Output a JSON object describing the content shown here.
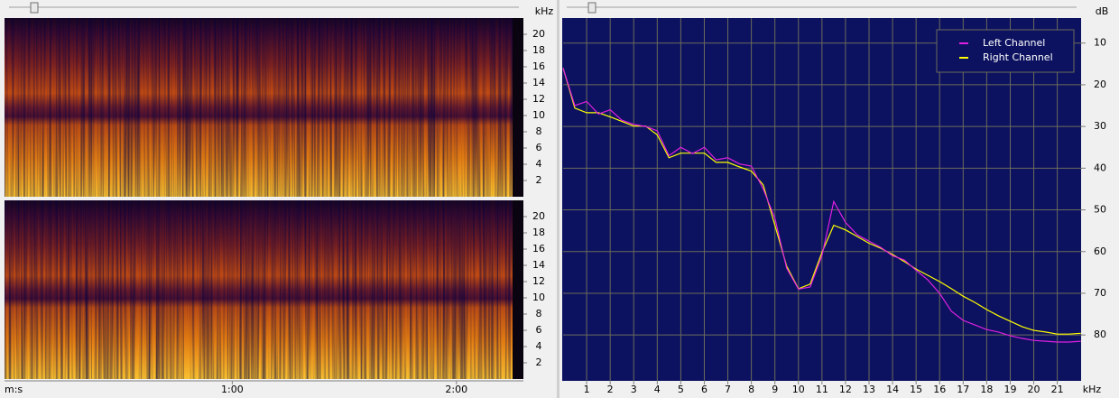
{
  "chart_data": [
    {
      "type": "spectrogram",
      "y_label": "kHz",
      "ylim": [
        0,
        22
      ],
      "yticks": [
        2,
        4,
        6,
        8,
        10,
        12,
        14,
        16,
        18,
        20
      ]
    },
    {
      "type": "spectrogram",
      "x_label": "m:s",
      "ylim": [
        0,
        22
      ],
      "yticks": [
        2,
        4,
        6,
        8,
        10,
        12,
        14,
        16,
        18,
        20
      ],
      "xlim": [
        0,
        136
      ],
      "xticks": [
        {
          "value": 60,
          "label": "1:00"
        },
        {
          "value": 120,
          "label": "2:00"
        }
      ]
    },
    {
      "type": "line",
      "x_label": "kHz",
      "y_label": "dB",
      "y_inverted": true,
      "grid": true,
      "legend": "top-right",
      "xlim": [
        0,
        22.05
      ],
      "ylim": [
        4,
        91
      ],
      "xticks": [
        1,
        2,
        3,
        4,
        5,
        6,
        7,
        8,
        9,
        10,
        11,
        12,
        13,
        14,
        15,
        16,
        17,
        18,
        19,
        20,
        21
      ],
      "yticks": [
        10,
        20,
        30,
        40,
        50,
        60,
        70,
        80
      ],
      "x": [
        0,
        0.5,
        1,
        1.5,
        2,
        2.5,
        3,
        3.5,
        4,
        4.5,
        5,
        5.5,
        6,
        6.5,
        7,
        7.5,
        8,
        8.5,
        9,
        9.5,
        10,
        10.5,
        11,
        11.5,
        12,
        12.5,
        13,
        13.5,
        14,
        14.5,
        15,
        15.5,
        16,
        16.5,
        17,
        17.5,
        18,
        18.5,
        19,
        19.5,
        20,
        20.5,
        21,
        21.5,
        22
      ],
      "series": [
        {
          "name": "Left Channel",
          "color": "#e020e0",
          "values": [
            16,
            25,
            24,
            27,
            26,
            28.5,
            29.5,
            30,
            31,
            37,
            35,
            36.5,
            35,
            38,
            37.5,
            39,
            39.5,
            45,
            52,
            64,
            69,
            68.5,
            61,
            48,
            53,
            56,
            57.5,
            59,
            61,
            62,
            64.5,
            66.8,
            70,
            74.3,
            76.5,
            77.6,
            78.7,
            79.3,
            80.2,
            80.8,
            81.3,
            81.5,
            81.7,
            81.7,
            81.5
          ]
        },
        {
          "name": "Right Channel",
          "color": "#ffff00",
          "values": [
            16,
            25.6,
            26.7,
            26.7,
            27.7,
            28.8,
            29.9,
            29.9,
            32,
            37.5,
            36.4,
            36.4,
            36.4,
            38.6,
            38.6,
            39.7,
            40.7,
            44,
            53.7,
            63.5,
            68.9,
            67.8,
            60.2,
            53.7,
            54.8,
            56.4,
            58,
            59.2,
            60.7,
            62.4,
            64.2,
            65.7,
            67.2,
            68.9,
            70.7,
            72.2,
            73.9,
            75.4,
            76.7,
            78,
            78.9,
            79.3,
            79.8,
            79.8,
            79.6
          ]
        }
      ]
    }
  ]
}
